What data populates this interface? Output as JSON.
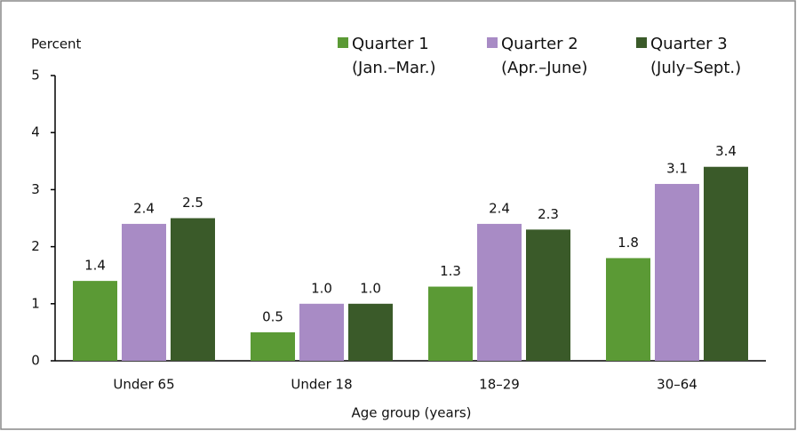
{
  "chart_data": {
    "type": "bar",
    "y_label": "Percent",
    "x_label": "Age group (years)",
    "categories": [
      "Under 65",
      "Under 18",
      "18–29",
      "30–64"
    ],
    "series": [
      {
        "name": "Quarter 1\n(Jan.–Mar.)",
        "color": "#5b9a35",
        "values": [
          1.4,
          0.5,
          1.3,
          1.8
        ],
        "value_labels": [
          "1.4",
          "0.5",
          "1.3",
          "1.8"
        ]
      },
      {
        "name": "Quarter 2\n(Apr.–June)",
        "color": "#a88bc5",
        "values": [
          2.4,
          1,
          2.4,
          3.1
        ],
        "value_labels": [
          "2.4",
          "1.0",
          "2.4",
          "3.1"
        ]
      },
      {
        "name": "Quarter 3\n(July–Sept.)",
        "color": "#3a5a29",
        "values": [
          2.5,
          1,
          2.3,
          3.4
        ],
        "value_labels": [
          "2.5",
          "1.0",
          "2.3",
          "3.4"
        ]
      }
    ],
    "ylim": [
      0,
      5
    ],
    "yticks": [
      0,
      1,
      2,
      3,
      4,
      5
    ],
    "grid": false
  }
}
